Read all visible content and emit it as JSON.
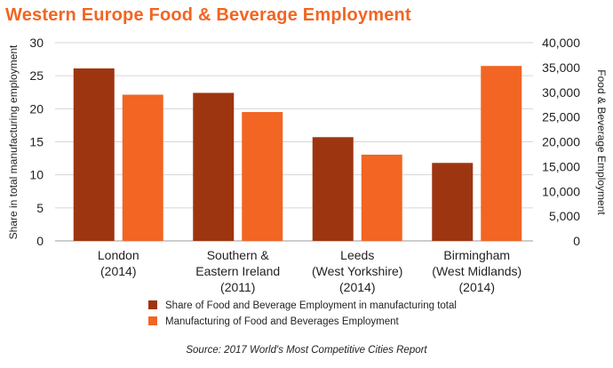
{
  "chart_data": {
    "type": "bar",
    "title": "Western Europe Food & Beverage Employment",
    "categories": [
      [
        "London",
        "(2014)"
      ],
      [
        "Southern &",
        "Eastern Ireland",
        "(2011)"
      ],
      [
        "Leeds",
        "(West Yorkshire)",
        "(2014)"
      ],
      [
        "Birmingham",
        "(West Midlands)",
        "(2014)"
      ]
    ],
    "series": [
      {
        "name": "Share of Food and Beverage Employment in manufacturing total",
        "axis": "left",
        "color": "#9e3511",
        "values": [
          26.1,
          22.4,
          15.7,
          11.8
        ]
      },
      {
        "name": "Manufacturing of Food and Beverages Employment",
        "axis": "right",
        "color": "#f26522",
        "values": [
          29500,
          26000,
          17400,
          35300
        ]
      }
    ],
    "ylabel": "Share in total manufacturing employment",
    "ylabel_right": "Food & Beverage Employment",
    "ylim": [
      0,
      30
    ],
    "ylim_right": [
      0,
      40000
    ],
    "yticks": [
      "0",
      "5",
      "10",
      "15",
      "20",
      "25",
      "30"
    ],
    "yticks_right": [
      "0",
      "5,000",
      "10,000",
      "15,000",
      "20,000",
      "25,000",
      "30,000",
      "35,000",
      "40,000"
    ],
    "grid": true,
    "legend_position": "bottom"
  },
  "source": "Source: 2017 World's Most Competitive Cities Report"
}
